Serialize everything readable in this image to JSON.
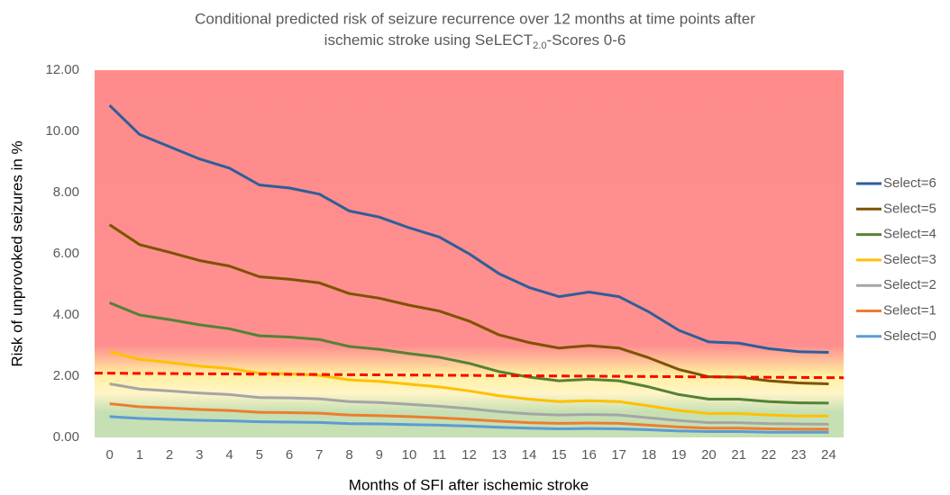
{
  "chart_data": {
    "type": "line",
    "title": {
      "line1": "Conditional predicted risk of seizure recurrence over 12 months at time points after",
      "line2": "ischemic stroke using SeLECT",
      "subscript": "2.0",
      "suffix": "-Scores 0-6"
    },
    "x_label": "Months of SFI after ischemic stroke",
    "y_label": "Risk of unprovoked seizures in %",
    "x": [
      0,
      1,
      2,
      3,
      4,
      5,
      6,
      7,
      8,
      9,
      10,
      11,
      12,
      13,
      14,
      15,
      16,
      17,
      18,
      19,
      20,
      21,
      22,
      23,
      24
    ],
    "xlim": [
      -0.5,
      24.5
    ],
    "xticks": [
      0,
      1,
      2,
      3,
      4,
      5,
      6,
      7,
      8,
      9,
      10,
      11,
      12,
      13,
      14,
      15,
      16,
      17,
      18,
      19,
      20,
      21,
      22,
      23,
      24
    ],
    "ylim": [
      0,
      12
    ],
    "yticks": [
      {
        "value": 0,
        "label": "0.00"
      },
      {
        "value": 2,
        "label": "2.00"
      },
      {
        "value": 4,
        "label": "4.00"
      },
      {
        "value": 6,
        "label": "6.00"
      },
      {
        "value": 8,
        "label": "8.00"
      },
      {
        "value": 10,
        "label": "10.00"
      },
      {
        "value": 12,
        "label": "12.00"
      }
    ],
    "legend": "right",
    "reference_line": {
      "color": "#ff0000",
      "values": [
        2.1,
        1.95
      ]
    },
    "series": [
      {
        "name": "Select=6",
        "color": "#2e5e9a",
        "values": [
          10.85,
          9.9,
          9.5,
          9.1,
          8.8,
          8.25,
          8.15,
          7.95,
          7.4,
          7.2,
          6.85,
          6.55,
          6.0,
          5.35,
          4.9,
          4.6,
          4.75,
          4.6,
          4.1,
          3.5,
          3.12,
          3.08,
          2.9,
          2.8,
          2.78
        ]
      },
      {
        "name": "Select=5",
        "color": "#7f5200",
        "values": [
          6.95,
          6.3,
          6.05,
          5.78,
          5.6,
          5.25,
          5.17,
          5.05,
          4.7,
          4.55,
          4.32,
          4.13,
          3.8,
          3.35,
          3.1,
          2.92,
          3.0,
          2.92,
          2.6,
          2.22,
          1.98,
          1.97,
          1.85,
          1.78,
          1.75
        ]
      },
      {
        "name": "Select=4",
        "color": "#548235",
        "values": [
          4.4,
          4.0,
          3.85,
          3.68,
          3.55,
          3.32,
          3.28,
          3.2,
          2.97,
          2.88,
          2.74,
          2.62,
          2.42,
          2.15,
          1.97,
          1.85,
          1.9,
          1.85,
          1.65,
          1.4,
          1.25,
          1.25,
          1.17,
          1.13,
          1.12
        ]
      },
      {
        "name": "Select=3",
        "color": "#ffc000",
        "values": [
          2.8,
          2.55,
          2.45,
          2.33,
          2.25,
          2.1,
          2.08,
          2.03,
          1.88,
          1.83,
          1.74,
          1.65,
          1.52,
          1.36,
          1.25,
          1.17,
          1.2,
          1.17,
          1.03,
          0.88,
          0.78,
          0.78,
          0.73,
          0.7,
          0.7
        ]
      },
      {
        "name": "Select=2",
        "color": "#a5a5a5",
        "values": [
          1.75,
          1.58,
          1.52,
          1.45,
          1.4,
          1.3,
          1.29,
          1.26,
          1.17,
          1.14,
          1.08,
          1.02,
          0.94,
          0.84,
          0.77,
          0.73,
          0.75,
          0.73,
          0.64,
          0.55,
          0.48,
          0.48,
          0.45,
          0.44,
          0.43
        ]
      },
      {
        "name": "Select=1",
        "color": "#ed7d31",
        "values": [
          1.1,
          1.0,
          0.96,
          0.91,
          0.88,
          0.82,
          0.81,
          0.79,
          0.73,
          0.71,
          0.68,
          0.64,
          0.59,
          0.53,
          0.48,
          0.46,
          0.47,
          0.46,
          0.4,
          0.34,
          0.3,
          0.3,
          0.28,
          0.27,
          0.27
        ]
      },
      {
        "name": "Select=0",
        "color": "#5b9bd5",
        "values": [
          0.68,
          0.62,
          0.59,
          0.56,
          0.54,
          0.51,
          0.5,
          0.49,
          0.45,
          0.44,
          0.42,
          0.4,
          0.37,
          0.33,
          0.3,
          0.28,
          0.29,
          0.28,
          0.25,
          0.21,
          0.19,
          0.19,
          0.17,
          0.17,
          0.17
        ]
      }
    ]
  }
}
